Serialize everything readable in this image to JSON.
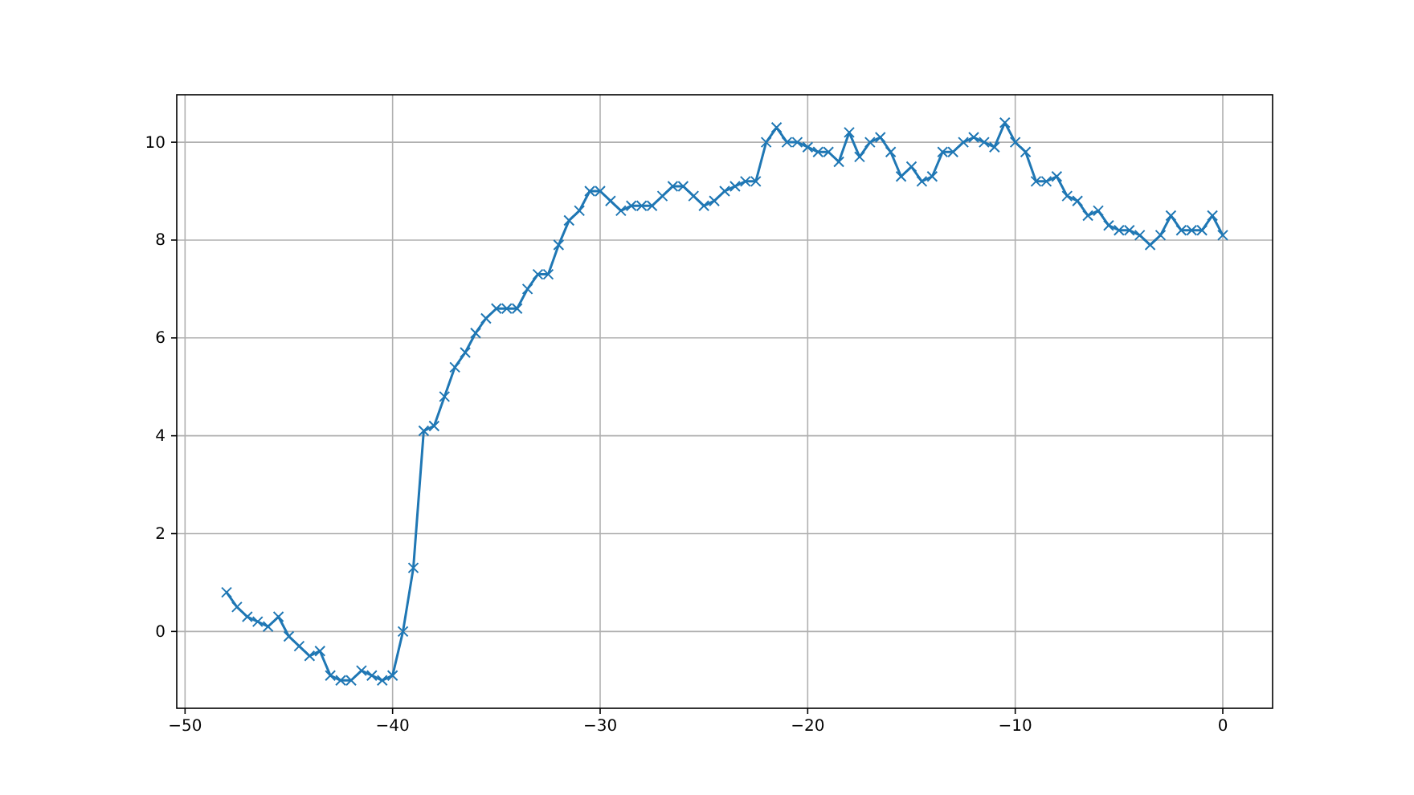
{
  "chart_data": {
    "type": "line",
    "marker": "cross",
    "grid": true,
    "line_style": "solid",
    "x": [
      -48,
      -47.5,
      -47,
      -46.5,
      -46,
      -45.5,
      -45,
      -44.5,
      -44,
      -43.5,
      -43,
      -42.5,
      -42,
      -41.5,
      -41,
      -40.5,
      -40,
      -39.5,
      -39,
      -38.5,
      -38,
      -37.5,
      -37,
      -36.5,
      -36,
      -35.5,
      -35,
      -34.5,
      -34,
      -33.5,
      -33,
      -32.5,
      -32,
      -31.5,
      -31,
      -30.5,
      -30,
      -29.5,
      -29,
      -28.5,
      -28,
      -27.5,
      -27,
      -26.5,
      -26,
      -25.5,
      -25,
      -24.5,
      -24,
      -23.5,
      -23,
      -22.5,
      -22,
      -21.5,
      -21,
      -20.5,
      -20,
      -19.5,
      -19,
      -18.5,
      -18,
      -17.5,
      -17,
      -16.5,
      -16,
      -15.5,
      -15,
      -14.5,
      -14,
      -13.5,
      -13,
      -12.5,
      -12,
      -11.5,
      -11,
      -10.5,
      -10,
      -9.5,
      -9,
      -8.5,
      -8,
      -7.5,
      -7,
      -6.5,
      -6,
      -5.5,
      -5,
      -4.5,
      -4,
      -3.5,
      -3,
      -2.5,
      -2,
      -1.5,
      -1,
      -0.5,
      0
    ],
    "series": [
      {
        "color": "#1f77b4",
        "values": [
          0.8,
          0.5,
          0.3,
          0.2,
          0.1,
          0.3,
          -0.1,
          -0.3,
          -0.5,
          -0.4,
          -0.9,
          -1.0,
          -1.0,
          -0.8,
          -0.9,
          -1.0,
          -0.9,
          0.0,
          1.3,
          4.1,
          4.2,
          4.8,
          5.4,
          5.7,
          6.1,
          6.4,
          6.6,
          6.6,
          6.6,
          7.0,
          7.3,
          7.3,
          7.9,
          8.4,
          8.6,
          9.0,
          9.0,
          8.8,
          8.6,
          8.7,
          8.7,
          8.7,
          8.9,
          9.1,
          9.1,
          8.9,
          8.7,
          8.8,
          9.0,
          9.1,
          9.2,
          9.2,
          10.0,
          10.3,
          10.0,
          10.0,
          9.9,
          9.8,
          9.8,
          9.6,
          10.2,
          9.7,
          10.0,
          10.1,
          9.8,
          9.3,
          9.5,
          9.2,
          9.3,
          9.8,
          9.8,
          10.0,
          10.1,
          10.0,
          9.9,
          10.4,
          10.0,
          9.8,
          9.2,
          9.2,
          9.3,
          8.9,
          8.8,
          8.5,
          8.6,
          8.3,
          8.2,
          8.2,
          8.1,
          7.9,
          8.1,
          8.5,
          8.2,
          8.2,
          8.2,
          8.5,
          8.1
        ]
      }
    ],
    "xlim": [
      -50.4,
      2.4
    ],
    "ylim": [
      -1.57,
      10.97
    ],
    "xticks": [
      {
        "value": -50,
        "label": "−50"
      },
      {
        "value": -40,
        "label": "−40"
      },
      {
        "value": -30,
        "label": "−30"
      },
      {
        "value": -20,
        "label": "−20"
      },
      {
        "value": -10,
        "label": "−10"
      },
      0
    ],
    "yticks": [
      0,
      2,
      4,
      6,
      8,
      10
    ]
  }
}
